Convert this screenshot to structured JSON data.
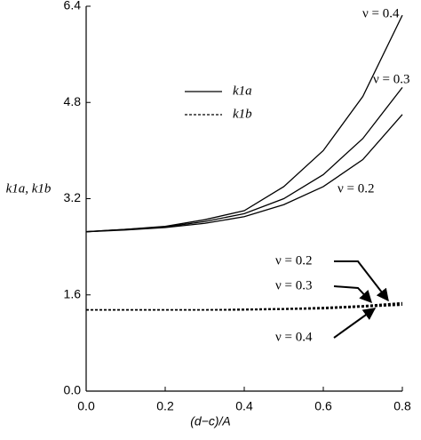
{
  "chart_data": {
    "type": "line",
    "xlabel": "(d−c)/A",
    "ylabel": "k1a, k1b",
    "x": [
      0,
      0.1,
      0.2,
      0.3,
      0.4,
      0.5,
      0.6,
      0.7,
      0.8
    ],
    "xlim": [
      0,
      0.8
    ],
    "xticks": [
      {
        "value": 0,
        "label": "0.0"
      },
      {
        "value": 0.2,
        "label": "0.2"
      },
      {
        "value": 0.4,
        "label": "0.4"
      },
      {
        "value": 0.6,
        "label": "0.6"
      },
      {
        "value": 0.8,
        "label": "0.8"
      }
    ],
    "ylim": [
      0,
      6.4
    ],
    "yticks": [
      {
        "value": 0,
        "label": "0.0"
      },
      {
        "value": 1.6,
        "label": "1.6"
      },
      {
        "value": 3.2,
        "label": "3.2"
      },
      {
        "value": 4.8,
        "label": "4.8"
      },
      {
        "value": 6.4,
        "label": "6.4"
      }
    ],
    "series": [
      {
        "name": "k1a",
        "color": "#000000",
        "dash": "solid",
        "curves": [
          {
            "label": "ν = 0.4",
            "values": [
              2.65,
              2.69,
              2.74,
              2.85,
              3.0,
              3.4,
              4.0,
              4.9,
              6.25
            ]
          },
          {
            "label": "ν = 0.3",
            "values": [
              2.65,
              2.69,
              2.73,
              2.82,
              2.95,
              3.2,
              3.6,
              4.2,
              5.05
            ]
          },
          {
            "label": "ν = 0.2",
            "values": [
              2.65,
              2.68,
              2.72,
              2.79,
              2.9,
              3.1,
              3.4,
              3.85,
              4.6
            ]
          }
        ]
      },
      {
        "name": "k1b",
        "color": "#000000",
        "dash": "dashed",
        "curves": [
          {
            "label": "ν = 0.2",
            "values": [
              1.35,
              1.35,
              1.35,
              1.35,
              1.36,
              1.37,
              1.39,
              1.42,
              1.47
            ]
          },
          {
            "label": "ν = 0.3",
            "values": [
              1.35,
              1.35,
              1.35,
              1.35,
              1.36,
              1.37,
              1.38,
              1.41,
              1.45
            ]
          },
          {
            "label": "ν = 0.4",
            "values": [
              1.35,
              1.35,
              1.35,
              1.35,
              1.35,
              1.36,
              1.37,
              1.4,
              1.43
            ]
          }
        ]
      }
    ]
  }
}
